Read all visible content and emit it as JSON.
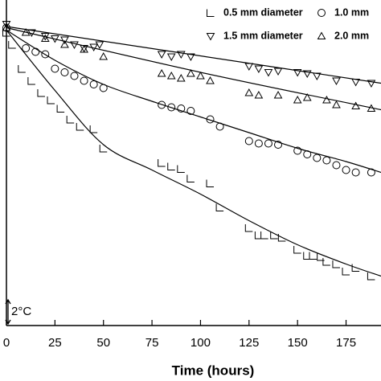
{
  "chart_data": {
    "type": "scatter",
    "x_label": "Time (hours)",
    "xlim": [
      0,
      193
    ],
    "xticks": [
      0,
      25,
      50,
      75,
      100,
      125,
      150,
      175
    ],
    "ylim": [
      0,
      27
    ],
    "scale_bar": {
      "value": 2,
      "label": "2°C"
    },
    "series": [
      {
        "name": "0.5 mm diameter",
        "color": "#000000",
        "marker": "L",
        "x": [
          0,
          3,
          8,
          13,
          18,
          23,
          28,
          33,
          38,
          45,
          50,
          80,
          85,
          90,
          95,
          105,
          110,
          125,
          130,
          133,
          138,
          142,
          150,
          155,
          158,
          162,
          165,
          170,
          175,
          180,
          188
        ],
        "values": [
          24.3,
          23.3,
          21.3,
          20.3,
          19.3,
          18.7,
          18.0,
          17.1,
          16.5,
          16.3,
          14.7,
          13.5,
          13.2,
          13.0,
          12.2,
          11.8,
          9.8,
          8.1,
          7.5,
          7.5,
          7.5,
          7.3,
          6.3,
          5.8,
          5.8,
          5.7,
          5.3,
          5.1,
          4.5,
          4.8,
          4.1
        ]
      },
      {
        "name": "1.0 mm",
        "color": "#000000",
        "marker": "circle",
        "x": [
          0,
          10,
          15,
          20,
          25,
          30,
          35,
          40,
          45,
          50,
          80,
          85,
          90,
          95,
          105,
          110,
          125,
          130,
          135,
          140,
          150,
          155,
          160,
          165,
          170,
          175,
          180,
          188
        ],
        "values": [
          24.7,
          23.0,
          22.7,
          22.5,
          21.3,
          21.0,
          20.7,
          20.3,
          20.0,
          19.7,
          18.3,
          18.1,
          18.0,
          17.8,
          17.1,
          16.5,
          15.3,
          15.1,
          15.1,
          15.0,
          14.5,
          14.2,
          13.9,
          13.7,
          13.3,
          12.9,
          12.7,
          12.7
        ]
      },
      {
        "name": "1.5 mm diameter",
        "color": "#000000",
        "marker": "tri-down",
        "x": [
          0,
          13,
          20,
          25,
          30,
          35,
          40,
          45,
          48,
          80,
          85,
          90,
          95,
          125,
          130,
          135,
          140,
          150,
          155,
          160,
          170,
          180,
          188
        ],
        "values": [
          25.0,
          24.3,
          24.0,
          23.8,
          23.7,
          23.3,
          23.0,
          23.1,
          23.3,
          22.5,
          22.3,
          22.5,
          22.3,
          21.5,
          21.3,
          21.0,
          21.1,
          21.0,
          20.9,
          20.7,
          20.3,
          20.2,
          20.1
        ]
      },
      {
        "name": "2.0 mm",
        "color": "#000000",
        "marker": "tri-up",
        "x": [
          0,
          10,
          20,
          30,
          40,
          50,
          80,
          85,
          90,
          95,
          100,
          105,
          125,
          130,
          140,
          150,
          155,
          165,
          170,
          180,
          188
        ],
        "values": [
          24.7,
          24.3,
          23.8,
          23.3,
          22.9,
          22.3,
          20.9,
          20.7,
          20.5,
          20.9,
          20.7,
          20.3,
          19.3,
          19.1,
          19.1,
          18.7,
          18.9,
          18.7,
          18.3,
          18.2,
          18.0
        ]
      }
    ],
    "fits": [
      {
        "color": "#000000",
        "x": [
          0,
          25,
          50,
          75,
          100,
          125,
          150,
          175,
          193
        ],
        "values": [
          24.5,
          19.5,
          15.0,
          12.9,
          10.9,
          8.7,
          6.7,
          5.1,
          4.1
        ]
      },
      {
        "color": "#000000",
        "x": [
          0,
          25,
          50,
          75,
          100,
          125,
          150,
          175,
          193
        ],
        "values": [
          24.5,
          22.0,
          20.0,
          18.6,
          17.3,
          16.0,
          14.7,
          13.6,
          12.7
        ]
      },
      {
        "color": "#000000",
        "x": [
          0,
          193
        ],
        "values": [
          24.8,
          20.1
        ]
      },
      {
        "color": "#000000",
        "x": [
          0,
          100,
          193
        ],
        "values": [
          24.7,
          21.0,
          17.9
        ]
      }
    ]
  }
}
